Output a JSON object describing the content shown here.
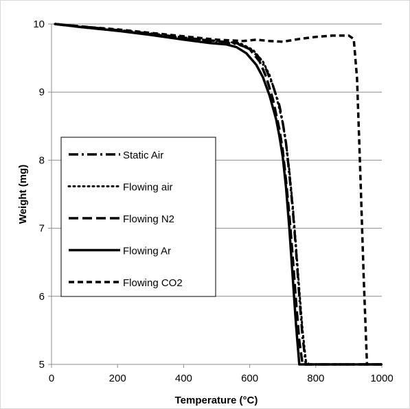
{
  "chart_data": {
    "type": "line",
    "title": "",
    "xlabel": "Temperature (°C)",
    "ylabel": "Weight (mg)",
    "xlim": [
      0,
      1000
    ],
    "ylim": [
      5,
      10
    ],
    "xticks": [
      0,
      200,
      400,
      600,
      800,
      1000
    ],
    "yticks": [
      5,
      6,
      7,
      8,
      9,
      10
    ],
    "grid": "horizontal",
    "legend_position": "left-middle",
    "series": [
      {
        "name": "Static Air",
        "dash": "dash-dot",
        "x": [
          10,
          100,
          200,
          300,
          400,
          500,
          560,
          600,
          630,
          650,
          670,
          690,
          700,
          710,
          720,
          730,
          740,
          750,
          760,
          770,
          780,
          1000
        ],
        "y": [
          10.0,
          9.95,
          9.9,
          9.85,
          9.78,
          9.73,
          9.71,
          9.64,
          9.5,
          9.33,
          9.1,
          8.8,
          8.55,
          8.25,
          7.8,
          7.3,
          6.7,
          6.0,
          5.4,
          5.0,
          5.0,
          5.0
        ]
      },
      {
        "name": "Flowing air",
        "dash": "dotted",
        "x": [
          10,
          100,
          200,
          300,
          400,
          500,
          570,
          610,
          640,
          660,
          680,
          700,
          710,
          720,
          730,
          740,
          750,
          760,
          770,
          780,
          1000
        ],
        "y": [
          10.0,
          9.95,
          9.9,
          9.85,
          9.8,
          9.75,
          9.72,
          9.62,
          9.45,
          9.25,
          8.95,
          8.55,
          8.25,
          7.85,
          7.35,
          6.75,
          6.1,
          5.5,
          5.05,
          5.0,
          5.0
        ]
      },
      {
        "name": "Flowing N2",
        "dash": "long-dash",
        "x": [
          10,
          100,
          200,
          300,
          400,
          500,
          560,
          600,
          630,
          650,
          670,
          690,
          700,
          710,
          720,
          730,
          740,
          750,
          760,
          1000
        ],
        "y": [
          10.0,
          9.96,
          9.91,
          9.86,
          9.8,
          9.75,
          9.72,
          9.63,
          9.45,
          9.22,
          8.9,
          8.45,
          8.15,
          7.7,
          7.2,
          6.6,
          5.95,
          5.35,
          5.0,
          5.0
        ]
      },
      {
        "name": "Flowing Ar",
        "dash": "solid",
        "x": [
          10,
          100,
          200,
          300,
          400,
          480,
          530,
          560,
          590,
          620,
          640,
          660,
          680,
          690,
          700,
          710,
          720,
          730,
          740,
          750,
          760,
          1000
        ],
        "y": [
          10.0,
          9.95,
          9.9,
          9.84,
          9.77,
          9.72,
          9.7,
          9.66,
          9.57,
          9.4,
          9.22,
          8.95,
          8.6,
          8.35,
          8.05,
          7.6,
          7.0,
          6.3,
          5.6,
          5.0,
          5.0,
          5.0
        ]
      },
      {
        "name": "Flowing CO2",
        "dash": "dash",
        "x": [
          10,
          100,
          200,
          300,
          400,
          500,
          580,
          620,
          660,
          700,
          750,
          800,
          850,
          900,
          915,
          925,
          935,
          945,
          955,
          1000
        ],
        "y": [
          10.0,
          9.96,
          9.92,
          9.87,
          9.82,
          9.77,
          9.75,
          9.77,
          9.75,
          9.74,
          9.78,
          9.81,
          9.83,
          9.83,
          9.78,
          9.2,
          7.8,
          6.3,
          5.0,
          5.0
        ]
      }
    ]
  }
}
